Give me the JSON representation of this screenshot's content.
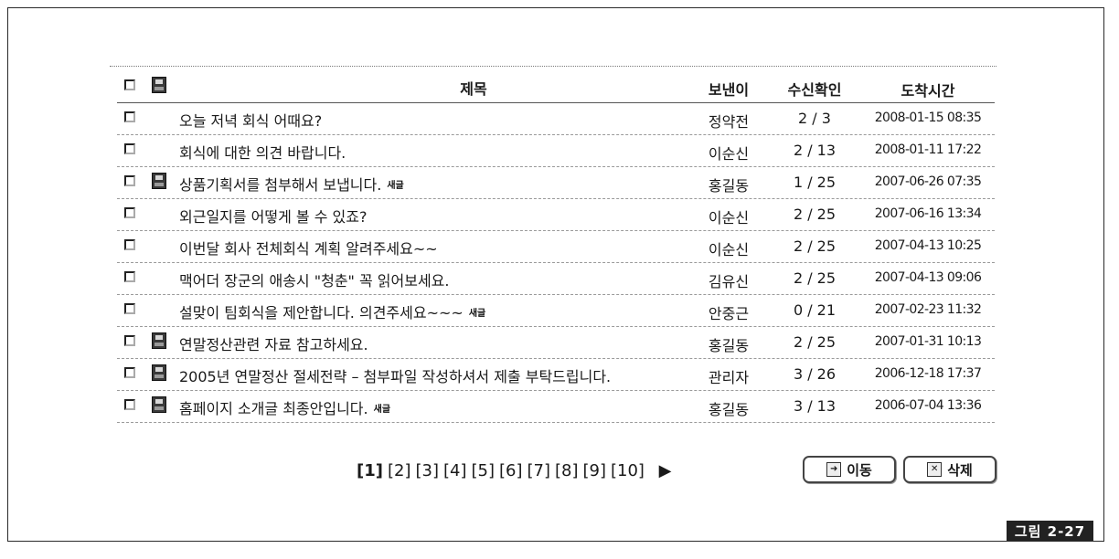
{
  "table": {
    "headers": {
      "title": "제목",
      "sender": "보낸이",
      "receipt": "수신확인",
      "arrival": "도착시간"
    },
    "rows": [
      {
        "title": "오늘 저녁 회식 어때요?",
        "attachment": false,
        "new": "",
        "sender": "정약전",
        "receipt": "2 / 3",
        "arrival": "2008-01-15 08:35"
      },
      {
        "title": "회식에 대한 의견 바랍니다.",
        "attachment": false,
        "new": "",
        "sender": "이순신",
        "receipt": "2 / 13",
        "arrival": "2008-01-11 17:22"
      },
      {
        "title": "상품기획서를 첨부해서 보냅니다.",
        "attachment": true,
        "new": "새글",
        "sender": "홍길동",
        "receipt": "1 / 25",
        "arrival": "2007-06-26 07:35"
      },
      {
        "title": "외근일지를 어떻게 볼 수 있죠?",
        "attachment": false,
        "new": "",
        "sender": "이순신",
        "receipt": "2 / 25",
        "arrival": "2007-06-16 13:34"
      },
      {
        "title": "이번달 회사 전체회식 계획 알려주세요~~",
        "attachment": false,
        "new": "",
        "sender": "이순신",
        "receipt": "2 / 25",
        "arrival": "2007-04-13 10:25"
      },
      {
        "title": "맥어더 장군의 애송시 \"청춘\" 꼭 읽어보세요.",
        "attachment": false,
        "new": "",
        "sender": "김유신",
        "receipt": "2 / 25",
        "arrival": "2007-04-13 09:06"
      },
      {
        "title": "설맞이 팀회식을 제안합니다. 의견주세요~~~",
        "attachment": false,
        "new": "새글",
        "sender": "안중근",
        "receipt": "0 / 21",
        "arrival": "2007-02-23 11:32"
      },
      {
        "title": "연말정산관련 자료 참고하세요.",
        "attachment": true,
        "new": "",
        "sender": "홍길동",
        "receipt": "2 / 25",
        "arrival": "2007-01-31 10:13"
      },
      {
        "title": "2005년 연말정산 절세전략 – 첨부파일 작성하셔서 제출 부탁드립니다.",
        "attachment": true,
        "new": "",
        "sender": "관리자",
        "receipt": "3 / 26",
        "arrival": "2006-12-18 17:37"
      },
      {
        "title": "홈페이지 소개글 최종안입니다.",
        "attachment": true,
        "new": "새글",
        "sender": "홍길동",
        "receipt": "3 / 13",
        "arrival": "2006-07-04 13:36"
      }
    ]
  },
  "pagination": {
    "pages": [
      "[1]",
      "[2]",
      "[3]",
      "[4]",
      "[5]",
      "[6]",
      "[7]",
      "[8]",
      "[9]",
      "[10]"
    ],
    "current": "[1]",
    "next": "▶"
  },
  "buttons": {
    "move": "이동",
    "delete": "삭제"
  },
  "figure_label": "그림 2-27"
}
